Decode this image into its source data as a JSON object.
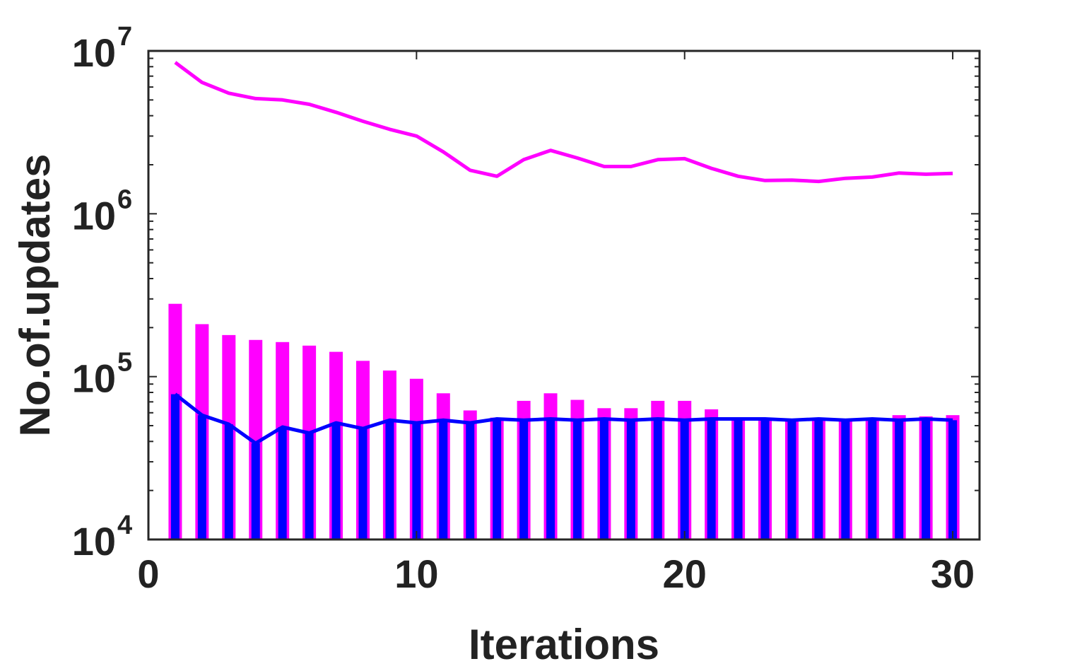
{
  "chart_data": {
    "type": "bar",
    "title": "",
    "xlabel": "Iterations",
    "ylabel": "No.of.updates",
    "yscale": "log",
    "xlim": [
      0,
      31
    ],
    "ylim": [
      10000,
      10000000
    ],
    "xticks": [
      "0",
      "10",
      "20",
      "30"
    ],
    "yticks": [
      {
        "base": "10",
        "exp": "4",
        "value": 10000
      },
      {
        "base": "10",
        "exp": "5",
        "value": 100000
      },
      {
        "base": "10",
        "exp": "6",
        "value": 1000000
      },
      {
        "base": "10",
        "exp": "7",
        "value": 10000000
      }
    ],
    "grid": false,
    "box": true,
    "x": [
      1,
      2,
      3,
      4,
      5,
      6,
      7,
      8,
      9,
      10,
      11,
      12,
      13,
      14,
      15,
      16,
      17,
      18,
      19,
      20,
      21,
      22,
      23,
      24,
      25,
      26,
      27,
      28,
      29,
      30
    ],
    "series": [
      {
        "type": "bar",
        "color": "#ff00ff",
        "values": [
          280000,
          210000,
          180000,
          168000,
          163000,
          155000,
          142000,
          125000,
          109000,
          97000,
          79000,
          62000,
          56000,
          71000,
          79000,
          72000,
          64000,
          64000,
          71000,
          71000,
          63000,
          56000,
          55000,
          55000,
          55000,
          54000,
          56000,
          58000,
          57000,
          58000
        ]
      },
      {
        "type": "bar",
        "color": "#0000ff",
        "values": [
          78000,
          58000,
          51000,
          39000,
          49000,
          45000,
          52000,
          48000,
          54000,
          52000,
          54000,
          52000,
          55000,
          54000,
          55000,
          54000,
          55000,
          54000,
          55000,
          54000,
          55000,
          55000,
          55000,
          54000,
          55000,
          54000,
          55000,
          54000,
          55000,
          54000
        ]
      },
      {
        "type": "line",
        "color": "#ff00ff",
        "values": [
          8500000,
          6400000,
          5500000,
          5100000,
          5000000,
          4700000,
          4200000,
          3700000,
          3300000,
          3000000,
          2400000,
          1850000,
          1700000,
          2150000,
          2450000,
          2200000,
          1950000,
          1950000,
          2150000,
          2180000,
          1900000,
          1700000,
          1600000,
          1610000,
          1580000,
          1650000,
          1680000,
          1780000,
          1750000,
          1770000
        ]
      },
      {
        "type": "line",
        "color": "#0000ff",
        "values": [
          78000,
          58000,
          51000,
          39000,
          49000,
          45000,
          52000,
          48000,
          54000,
          52000,
          54000,
          52000,
          55000,
          54000,
          55000,
          54000,
          55000,
          54000,
          55000,
          54000,
          55000,
          55000,
          55000,
          54000,
          55000,
          54000,
          55000,
          54000,
          55000,
          54000
        ]
      }
    ]
  }
}
